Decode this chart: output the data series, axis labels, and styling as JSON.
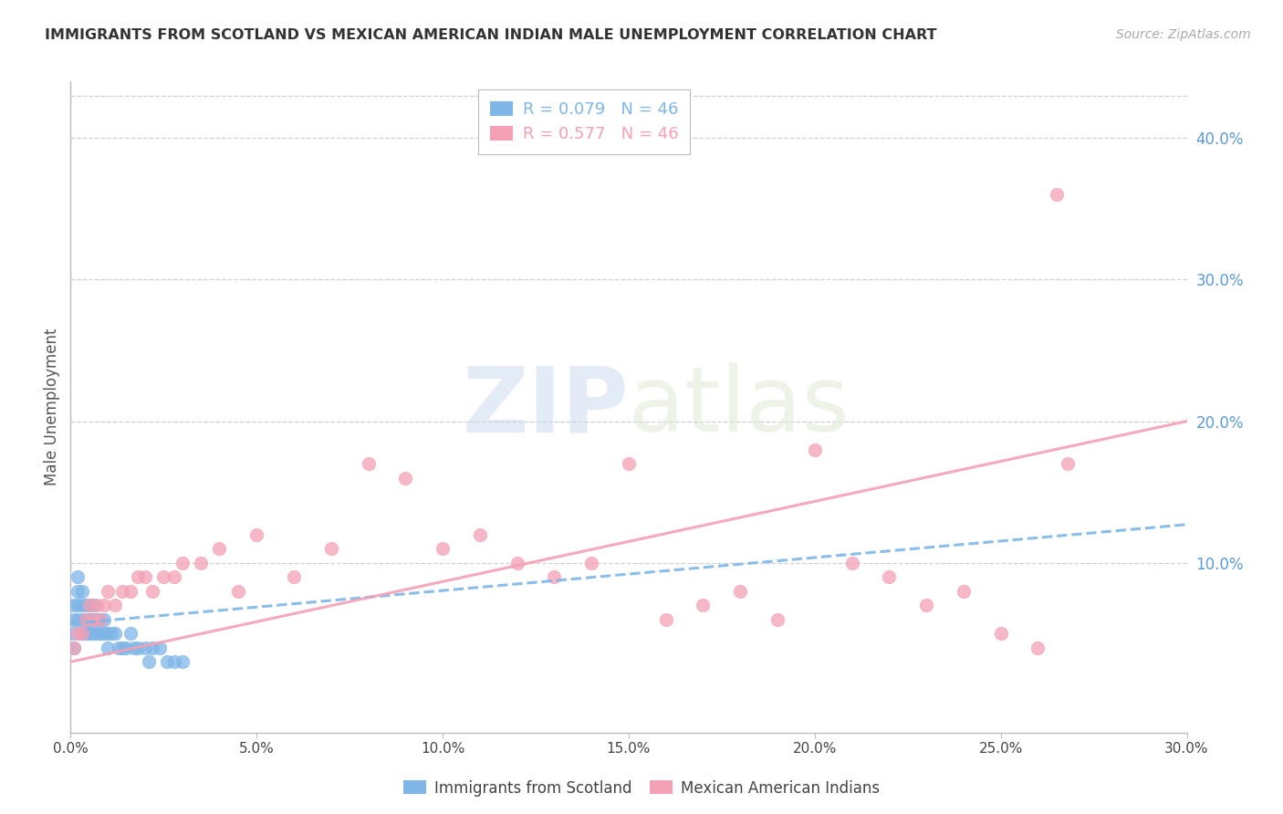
{
  "title": "IMMIGRANTS FROM SCOTLAND VS MEXICAN AMERICAN INDIAN MALE UNEMPLOYMENT CORRELATION CHART",
  "source": "Source: ZipAtlas.com",
  "ylabel": "Male Unemployment",
  "xlim": [
    0.0,
    0.3
  ],
  "ylim": [
    -0.02,
    0.44
  ],
  "xtick_vals": [
    0.0,
    0.05,
    0.1,
    0.15,
    0.2,
    0.25,
    0.3
  ],
  "yticks_right": [
    0.1,
    0.2,
    0.3,
    0.4
  ],
  "scotland_color": "#7eb6e8",
  "mexico_color": "#f4a0b5",
  "scotland_R": 0.079,
  "scotland_N": 46,
  "mexico_R": 0.577,
  "mexico_N": 46,
  "watermark_zip": "ZIP",
  "watermark_atlas": "atlas",
  "scotland_x": [
    0.001,
    0.001,
    0.001,
    0.001,
    0.002,
    0.002,
    0.002,
    0.002,
    0.003,
    0.003,
    0.003,
    0.003,
    0.003,
    0.004,
    0.004,
    0.004,
    0.005,
    0.005,
    0.005,
    0.005,
    0.006,
    0.006,
    0.006,
    0.007,
    0.007,
    0.008,
    0.008,
    0.009,
    0.009,
    0.01,
    0.01,
    0.011,
    0.012,
    0.013,
    0.014,
    0.015,
    0.016,
    0.017,
    0.018,
    0.02,
    0.021,
    0.022,
    0.024,
    0.026,
    0.028,
    0.03
  ],
  "scotland_y": [
    0.05,
    0.06,
    0.07,
    0.04,
    0.08,
    0.09,
    0.07,
    0.06,
    0.05,
    0.07,
    0.08,
    0.06,
    0.05,
    0.06,
    0.07,
    0.05,
    0.06,
    0.07,
    0.05,
    0.06,
    0.05,
    0.06,
    0.07,
    0.06,
    0.05,
    0.06,
    0.05,
    0.05,
    0.06,
    0.05,
    0.04,
    0.05,
    0.05,
    0.04,
    0.04,
    0.04,
    0.05,
    0.04,
    0.04,
    0.04,
    0.03,
    0.04,
    0.04,
    0.03,
    0.03,
    0.03
  ],
  "mexico_x": [
    0.001,
    0.002,
    0.003,
    0.004,
    0.005,
    0.006,
    0.007,
    0.008,
    0.009,
    0.01,
    0.012,
    0.014,
    0.016,
    0.018,
    0.02,
    0.022,
    0.025,
    0.028,
    0.03,
    0.035,
    0.04,
    0.045,
    0.05,
    0.06,
    0.07,
    0.08,
    0.09,
    0.1,
    0.11,
    0.12,
    0.13,
    0.14,
    0.15,
    0.16,
    0.17,
    0.18,
    0.19,
    0.2,
    0.21,
    0.22,
    0.23,
    0.24,
    0.25,
    0.26,
    0.265,
    0.268
  ],
  "mexico_y": [
    0.04,
    0.05,
    0.05,
    0.06,
    0.07,
    0.06,
    0.07,
    0.06,
    0.07,
    0.08,
    0.07,
    0.08,
    0.08,
    0.09,
    0.09,
    0.08,
    0.09,
    0.09,
    0.1,
    0.1,
    0.11,
    0.08,
    0.12,
    0.09,
    0.11,
    0.17,
    0.16,
    0.11,
    0.12,
    0.1,
    0.09,
    0.1,
    0.17,
    0.06,
    0.07,
    0.08,
    0.06,
    0.18,
    0.1,
    0.09,
    0.07,
    0.08,
    0.05,
    0.04,
    0.36,
    0.17
  ],
  "scot_trend_x": [
    0.0,
    0.3
  ],
  "scot_trend_y": [
    0.057,
    0.127
  ],
  "mex_trend_x": [
    0.0,
    0.3
  ],
  "mex_trend_y": [
    0.03,
    0.2
  ]
}
